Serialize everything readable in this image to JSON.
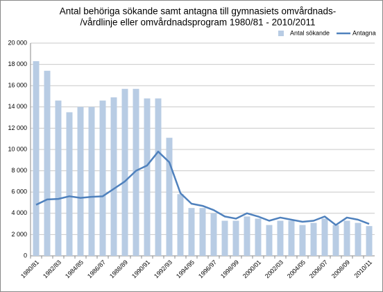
{
  "chart_data": {
    "type": "bar",
    "title": [
      "Antal behöriga sökande samt antagna till gymnasiets omvårdnads-",
      "/vårdlinje eller omvårdnadsprogram 1980/81 - 2010/2011"
    ],
    "categories": [
      "1980/81",
      null,
      "1982/83",
      null,
      "1984/85",
      null,
      "1986/87",
      null,
      "1988/89",
      null,
      "1990/91",
      null,
      "1992/93",
      null,
      "1994/95",
      null,
      "1996/97",
      null,
      "1998/99",
      null,
      "2000/01",
      null,
      "2002/03",
      null,
      "2004/05",
      null,
      "2006/07",
      null,
      "2008/09",
      null,
      "2010/11"
    ],
    "series": [
      {
        "name": "Antal sökande",
        "type": "bar",
        "color": "#b8cce4",
        "values": [
          18300,
          17400,
          14600,
          13500,
          14000,
          14000,
          14600,
          14900,
          15700,
          15700,
          14800,
          14800,
          11100,
          5800,
          4500,
          4500,
          4000,
          3300,
          3300,
          3700,
          3500,
          2900,
          3300,
          3300,
          2900,
          3100,
          3500,
          2900,
          3300,
          3100,
          2800
        ]
      },
      {
        "name": "Antagna",
        "type": "line",
        "color": "#4f81bd",
        "values": [
          4800,
          5300,
          5350,
          5600,
          5450,
          5550,
          5600,
          6300,
          7000,
          8000,
          8500,
          9800,
          8800,
          5900,
          4900,
          4700,
          4300,
          3700,
          3500,
          4000,
          3700,
          3300,
          3600,
          3400,
          3200,
          3300,
          3700,
          2900,
          3600,
          3400,
          3000
        ]
      }
    ],
    "ylim": [
      0,
      20000
    ],
    "yticks": [
      0,
      {
        "value": 2000,
        "label": "2 000"
      },
      {
        "value": 4000,
        "label": "4 000"
      },
      {
        "value": 6000,
        "label": "6 000"
      },
      {
        "value": 8000,
        "label": "8 000"
      },
      {
        "value": 10000,
        "label": "10 000"
      },
      {
        "value": 12000,
        "label": "12 000"
      },
      {
        "value": 14000,
        "label": "14 000"
      },
      {
        "value": 16000,
        "label": "16 000"
      },
      {
        "value": 18000,
        "label": "18 000"
      },
      {
        "value": 20000,
        "label": "20 000"
      }
    ],
    "grid": true,
    "legend": "top-right"
  }
}
